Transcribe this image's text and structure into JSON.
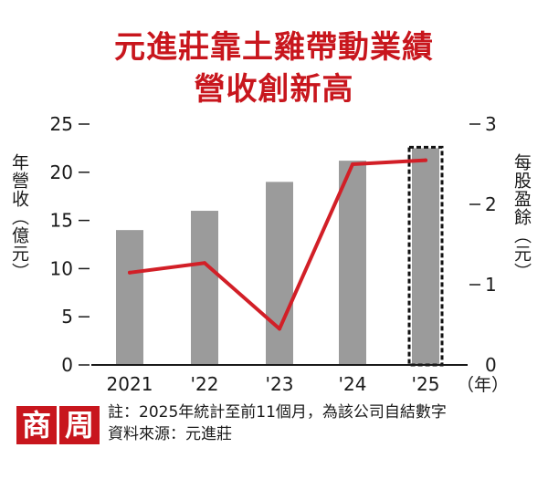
{
  "title_line1": "元進莊靠土雞帶動業績",
  "title_line2": "營收創新高",
  "left_axis_label": "年營收（億元）",
  "right_axis_label": "每股盈餘（元）",
  "x_unit_label": "（年）",
  "logo_chars": [
    "商",
    "周"
  ],
  "note_line1": "註：2025年統計至前11個月，為該公司自結數字",
  "note_line2": "資料來源：元進莊",
  "colors": {
    "title": "#c8161d",
    "bar": "#9b9b9b",
    "line": "#d21f27",
    "logo_bg": "#c8161d",
    "axis": "#1a1a1a"
  },
  "chart_data": {
    "type": "bar",
    "categories": [
      "2021",
      "'22",
      "'23",
      "'24",
      "'25"
    ],
    "series": [
      {
        "name": "年營收（億元）",
        "kind": "bar",
        "axis": "left",
        "values": [
          14,
          16,
          19,
          21.2,
          22.5
        ],
        "dashed_outline_last": true
      },
      {
        "name": "每股盈餘（元）",
        "kind": "line",
        "axis": "right",
        "values": [
          1.15,
          1.27,
          0.45,
          2.5,
          2.55
        ]
      }
    ],
    "left_axis": {
      "min": 0,
      "max": 25,
      "ticks": [
        0,
        5,
        10,
        15,
        20,
        25
      ]
    },
    "right_axis": {
      "min": 0,
      "max": 3,
      "ticks": [
        0,
        1,
        2,
        3
      ]
    },
    "xlabel": "（年）",
    "ylabel": "年營收（億元）",
    "y2label": "每股盈餘（元）"
  }
}
